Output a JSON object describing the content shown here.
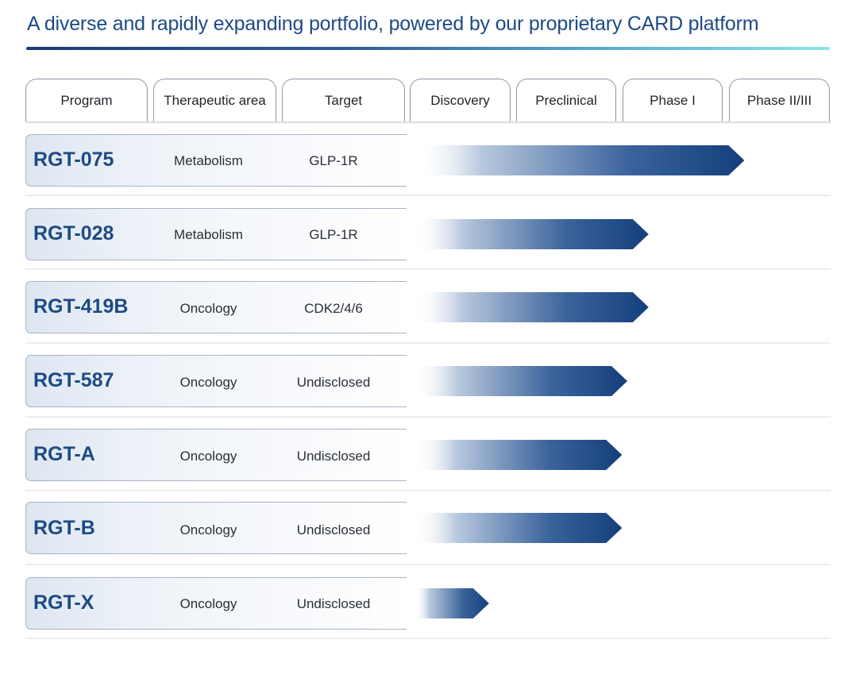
{
  "title": "A diverse and rapidly expanding portfolio, powered by our proprietary CARD platform",
  "columns": [
    "Program",
    "Therapeutic area",
    "Target",
    "Discovery",
    "Preclinical",
    "Phase I",
    "Phase II/III"
  ],
  "colors": {
    "accent": "#1d4a84",
    "bar_dark": "#143f7c",
    "bar_light": "#ffffff"
  },
  "chart_data": {
    "type": "bar",
    "orientation": "horizontal",
    "title": "A diverse and rapidly expanding portfolio, powered by our proprietary CARD platform",
    "stage_axis": [
      "Discovery",
      "Preclinical",
      "Phase I",
      "Phase II/III"
    ],
    "x_range": [
      0,
      4
    ],
    "categories": [
      "RGT-075",
      "RGT-028",
      "RGT-419B",
      "RGT-587",
      "RGT-A",
      "RGT-B",
      "RGT-X"
    ],
    "values": [
      3.1,
      2.2,
      2.2,
      2.0,
      1.95,
      1.95,
      0.7
    ],
    "rows": [
      {
        "program": "RGT-075",
        "area": "Metabolism",
        "target": "GLP-1R",
        "progress": 3.1
      },
      {
        "program": "RGT-028",
        "area": "Metabolism",
        "target": "GLP-1R",
        "progress": 2.2
      },
      {
        "program": "RGT-419B",
        "area": "Oncology",
        "target": "CDK2/4/6",
        "progress": 2.2
      },
      {
        "program": "RGT-587",
        "area": "Oncology",
        "target": "Undisclosed",
        "progress": 2.0
      },
      {
        "program": "RGT-A",
        "area": "Oncology",
        "target": "Undisclosed",
        "progress": 1.95
      },
      {
        "program": "RGT-B",
        "area": "Oncology",
        "target": "Undisclosed",
        "progress": 1.95
      },
      {
        "program": "RGT-X",
        "area": "Oncology",
        "target": "Undisclosed",
        "progress": 0.7
      }
    ]
  }
}
